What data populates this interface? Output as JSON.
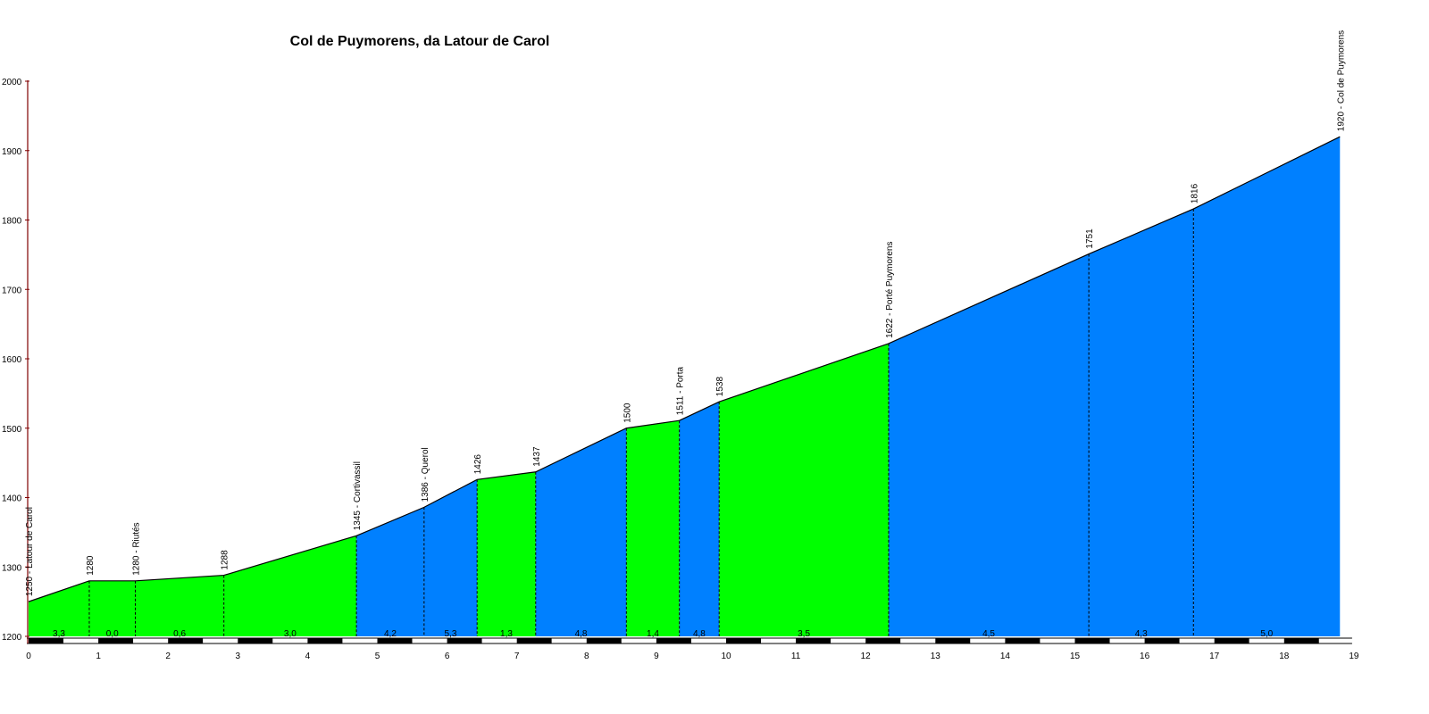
{
  "chart_data": {
    "type": "area",
    "title": "Col de Puymorens, da Latour de Carol",
    "xlabel": "",
    "ylabel": "",
    "xlim": [
      0,
      19
    ],
    "ylim": [
      1200,
      2000
    ],
    "x_ticks": [
      0,
      1,
      2,
      3,
      4,
      5,
      6,
      7,
      8,
      9,
      10,
      11,
      12,
      13,
      14,
      15,
      16,
      17,
      18,
      19
    ],
    "y_ticks": [
      1200,
      1300,
      1400,
      1500,
      1600,
      1700,
      1800,
      1900,
      2000
    ],
    "colors": {
      "green": "#00ff00",
      "blue": "#0080ff",
      "axis": "#800000"
    },
    "points": [
      {
        "km": 0.0,
        "alt": 1250,
        "label": "1250 - Latour de Carol"
      },
      {
        "km": 0.87,
        "alt": 1280,
        "label": "1280"
      },
      {
        "km": 1.53,
        "alt": 1280,
        "label": "1280 - Riutés"
      },
      {
        "km": 2.8,
        "alt": 1288,
        "label": "1288"
      },
      {
        "km": 4.7,
        "alt": 1345,
        "label": "1345 - Cortivassil"
      },
      {
        "km": 5.67,
        "alt": 1386,
        "label": "1386 - Querol"
      },
      {
        "km": 6.43,
        "alt": 1426,
        "label": "1426"
      },
      {
        "km": 7.27,
        "alt": 1437,
        "label": "1437"
      },
      {
        "km": 8.57,
        "alt": 1500,
        "label": "1500"
      },
      {
        "km": 9.33,
        "alt": 1511,
        "label": "1511 - Porta"
      },
      {
        "km": 9.9,
        "alt": 1538,
        "label": "1538"
      },
      {
        "km": 12.33,
        "alt": 1622,
        "label": "1622 - Porté Puymorens"
      },
      {
        "km": 15.2,
        "alt": 1751,
        "label": "1751"
      },
      {
        "km": 16.7,
        "alt": 1816,
        "label": "1816"
      },
      {
        "km": 18.8,
        "alt": 1920,
        "label": "1920 - Col de Puymorens"
      }
    ],
    "segments": [
      {
        "gradient": "3,3",
        "color": "green"
      },
      {
        "gradient": "0,0",
        "color": "green"
      },
      {
        "gradient": "0,6",
        "color": "green"
      },
      {
        "gradient": "3,0",
        "color": "green"
      },
      {
        "gradient": "4,2",
        "color": "blue"
      },
      {
        "gradient": "5,3",
        "color": "blue"
      },
      {
        "gradient": "1,3",
        "color": "green"
      },
      {
        "gradient": "4,8",
        "color": "blue"
      },
      {
        "gradient": "1,4",
        "color": "green"
      },
      {
        "gradient": "4,8",
        "color": "blue"
      },
      {
        "gradient": "3,5",
        "color": "green"
      },
      {
        "gradient": "4,5",
        "color": "blue"
      },
      {
        "gradient": "4,3",
        "color": "blue"
      },
      {
        "gradient": "5,0",
        "color": "blue"
      }
    ]
  }
}
